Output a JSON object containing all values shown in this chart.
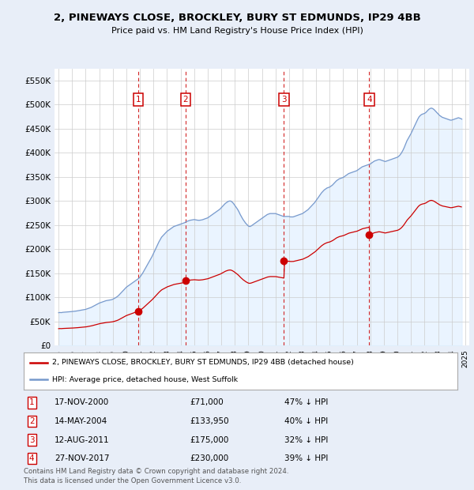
{
  "title": "2, PINEWAYS CLOSE, BROCKLEY, BURY ST EDMUNDS, IP29 4BB",
  "subtitle": "Price paid vs. HM Land Registry's House Price Index (HPI)",
  "ylabel_ticks": [
    "£0",
    "£50K",
    "£100K",
    "£150K",
    "£200K",
    "£250K",
    "£300K",
    "£350K",
    "£400K",
    "£450K",
    "£500K",
    "£550K"
  ],
  "ytick_values": [
    0,
    50000,
    100000,
    150000,
    200000,
    250000,
    300000,
    350000,
    400000,
    450000,
    500000,
    550000
  ],
  "ylim": [
    0,
    575000
  ],
  "sale_year_floats": [
    2000.875,
    2004.375,
    2011.625,
    2017.917
  ],
  "sale_prices": [
    71000,
    133950,
    175000,
    230000
  ],
  "sale_labels": [
    "1",
    "2",
    "3",
    "4"
  ],
  "sale_info": [
    {
      "num": "1",
      "date": "17-NOV-2000",
      "price": "£71,000",
      "pct": "47% ↓ HPI"
    },
    {
      "num": "2",
      "date": "14-MAY-2004",
      "price": "£133,950",
      "pct": "40% ↓ HPI"
    },
    {
      "num": "3",
      "date": "12-AUG-2011",
      "price": "£175,000",
      "pct": "32% ↓ HPI"
    },
    {
      "num": "4",
      "date": "27-NOV-2017",
      "price": "£230,000",
      "pct": "39% ↓ HPI"
    }
  ],
  "legend_red": "2, PINEWAYS CLOSE, BROCKLEY, BURY ST EDMUNDS, IP29 4BB (detached house)",
  "legend_blue": "HPI: Average price, detached house, West Suffolk",
  "footer1": "Contains HM Land Registry data © Crown copyright and database right 2024.",
  "footer2": "This data is licensed under the Open Government Licence v3.0.",
  "bg_color": "#e8eef8",
  "plot_bg": "#ffffff",
  "red_color": "#cc0000",
  "blue_color": "#7799cc",
  "shade_color": "#ddeeff"
}
